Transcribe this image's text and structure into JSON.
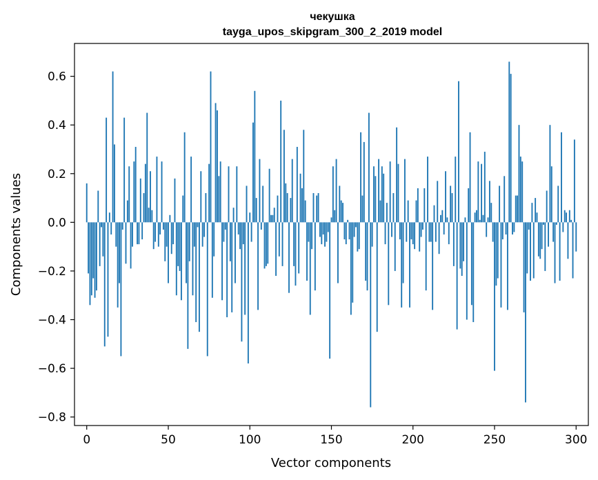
{
  "chart_data": {
    "type": "bar",
    "title": "чекушка",
    "subtitle": "tayga_upos_skipgram_300_2_2019 model",
    "xlabel": "Vector components",
    "ylabel": "Components values",
    "xlim": [
      -7.5,
      307.5
    ],
    "ylim": [
      -0.835,
      0.735
    ],
    "xticks": [
      0,
      50,
      100,
      150,
      200,
      250,
      300
    ],
    "yticks": [
      -0.8,
      -0.6,
      -0.4,
      -0.2,
      0.0,
      0.2,
      0.4,
      0.6
    ],
    "ytick_labels": [
      "−0.8",
      "−0.6",
      "−0.4",
      "−0.2",
      "0.0",
      "0.2",
      "0.4",
      "0.6"
    ],
    "bar_color": "#1f77b4",
    "grid": false,
    "values": [
      0.16,
      -0.21,
      -0.34,
      -0.3,
      -0.23,
      -0.31,
      -0.28,
      0.13,
      -0.18,
      -0.02,
      -0.14,
      -0.51,
      0.43,
      -0.47,
      0.04,
      -0.05,
      0.62,
      0.32,
      -0.1,
      -0.35,
      -0.25,
      -0.55,
      -0.03,
      0.43,
      -0.17,
      0.09,
      0.23,
      -0.19,
      -0.1,
      0.25,
      0.31,
      -0.09,
      -0.09,
      0.18,
      -0.07,
      0.12,
      0.24,
      0.45,
      0.06,
      0.21,
      0.05,
      -0.11,
      -0.08,
      0.27,
      -0.1,
      -0.05,
      0.25,
      -0.03,
      -0.16,
      -0.1,
      -0.25,
      0.03,
      -0.13,
      -0.09,
      0.18,
      -0.3,
      -0.18,
      -0.2,
      -0.32,
      0.11,
      0.37,
      -0.25,
      -0.52,
      -0.16,
      0.27,
      -0.3,
      -0.1,
      -0.41,
      -0.02,
      -0.45,
      0.21,
      -0.1,
      -0.06,
      0.12,
      -0.55,
      0.24,
      0.62,
      -0.31,
      -0.14,
      0.49,
      0.46,
      0.19,
      0.25,
      -0.32,
      -0.08,
      -0.03,
      -0.39,
      0.23,
      -0.16,
      -0.37,
      0.06,
      -0.25,
      0.23,
      -0.05,
      -0.11,
      -0.49,
      -0.09,
      -0.38,
      0.15,
      -0.58,
      0.04,
      -0.08,
      0.41,
      0.54,
      0.1,
      -0.36,
      0.26,
      -0.03,
      0.15,
      -0.19,
      -0.18,
      -0.17,
      0.22,
      0.03,
      0.03,
      0.06,
      -0.22,
      0.11,
      -0.14,
      0.5,
      -0.18,
      0.38,
      0.16,
      0.12,
      -0.29,
      0.1,
      0.26,
      -0.18,
      -0.26,
      0.31,
      -0.21,
      0.2,
      0.14,
      0.38,
      0.09,
      -0.24,
      -0.08,
      -0.38,
      -0.11,
      0.12,
      -0.28,
      0.11,
      0.12,
      -0.06,
      -0.09,
      -0.05,
      -0.1,
      -0.08,
      -0.04,
      -0.56,
      0.02,
      0.23,
      0.05,
      0.26,
      -0.25,
      0.15,
      0.09,
      0.08,
      -0.07,
      -0.09,
      0.01,
      -0.07,
      -0.38,
      -0.33,
      -0.06,
      -0.02,
      -0.12,
      -0.11,
      0.37,
      0.11,
      0.33,
      -0.24,
      -0.28,
      0.45,
      -0.76,
      -0.1,
      0.23,
      0.19,
      -0.45,
      0.26,
      0.09,
      0.23,
      0.2,
      -0.09,
      0.08,
      -0.34,
      0.25,
      -0.06,
      0.12,
      -0.2,
      0.39,
      0.24,
      -0.07,
      -0.35,
      -0.25,
      0.26,
      -0.08,
      0.09,
      -0.35,
      -0.07,
      -0.09,
      -0.11,
      0.09,
      0.14,
      -0.12,
      -0.06,
      -0.03,
      0.14,
      -0.28,
      0.27,
      -0.08,
      -0.08,
      -0.36,
      0.07,
      -0.08,
      0.17,
      -0.13,
      0.03,
      0.05,
      -0.05,
      0.21,
      0.02,
      -0.09,
      0.15,
      0.12,
      -0.18,
      0.27,
      -0.44,
      0.58,
      -0.19,
      -0.22,
      -0.16,
      0.02,
      -0.4,
      0.14,
      0.37,
      -0.34,
      -0.41,
      0.04,
      0.05,
      0.25,
      0.01,
      0.24,
      0.03,
      0.29,
      -0.06,
      0.02,
      0.17,
      0.08,
      -0.08,
      -0.61,
      -0.26,
      -0.23,
      0.15,
      -0.35,
      -0.07,
      0.19,
      -0.05,
      -0.36,
      0.66,
      0.61,
      -0.05,
      -0.04,
      0.11,
      0.11,
      0.4,
      0.27,
      0.25,
      -0.37,
      -0.74,
      -0.21,
      -0.03,
      -0.24,
      0.08,
      -0.23,
      0.1,
      0.04,
      -0.14,
      -0.15,
      -0.11,
      -0.01,
      -0.2,
      0.13,
      -0.1,
      0.4,
      0.23,
      -0.08,
      -0.25,
      -0.01,
      0.15,
      -0.24,
      0.37,
      -0.04,
      0.05,
      0.04,
      -0.15,
      0.05,
      0.01,
      -0.23,
      0.34,
      -0.12
    ]
  }
}
